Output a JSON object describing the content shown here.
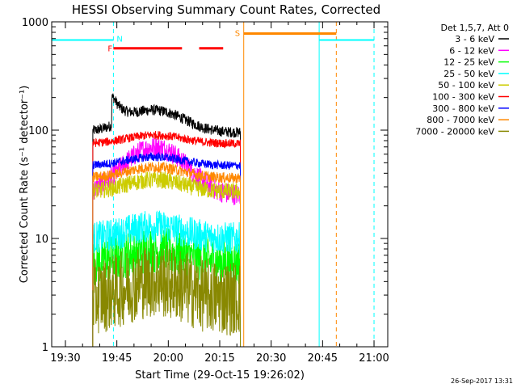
{
  "chart_data": {
    "type": "line",
    "title": "HESSI Observing Summary Count Rates, Corrected",
    "xlabel": "Start Time (29-Oct-15 19:26:02)",
    "ylabel": "Corrected Count Rate (s⁻¹ detector⁻¹)",
    "y_scale": "log",
    "ylim": [
      1,
      1000
    ],
    "xlim": [
      "19:26",
      "21:04"
    ],
    "x_ticks": [
      "19:30",
      "19:45",
      "20:00",
      "20:15",
      "20:30",
      "20:45",
      "21:00"
    ],
    "y_ticks": [
      "1",
      "10",
      "100",
      "1000"
    ],
    "legend_title": "Det 1,5,7, Att 0",
    "legend_placement": "right",
    "data_start": "19:38",
    "data_end": "20:21",
    "series": [
      {
        "name": "3 - 6 keV",
        "color": "#000000",
        "base": 95,
        "peak": 190,
        "noise": 0.05
      },
      {
        "name": "6 - 12 keV",
        "color": "#ff00ff",
        "base": 25,
        "peak": 100,
        "noise": 0.1
      },
      {
        "name": "12 - 25 keV",
        "color": "#00ff00",
        "base": 6,
        "peak": 9,
        "noise": 0.22
      },
      {
        "name": "25 - 50 keV",
        "color": "#00ffff",
        "base": 10,
        "peak": 15,
        "noise": 0.15
      },
      {
        "name": "50 - 100 keV",
        "color": "#cccc00",
        "base": 27,
        "peak": 40,
        "noise": 0.08
      },
      {
        "name": "100 - 300 keV",
        "color": "#ff0000",
        "base": 75,
        "peak": 100,
        "noise": 0.04
      },
      {
        "name": "300 - 800 keV",
        "color": "#0000ff",
        "base": 47,
        "peak": 63,
        "noise": 0.04
      },
      {
        "name": "800 - 7000 keV",
        "color": "#ff8800",
        "base": 36,
        "peak": 52,
        "noise": 0.05
      },
      {
        "name": "7000 - 20000 keV",
        "color": "#888800",
        "base": 2.8,
        "peak": 5,
        "noise": 0.35
      }
    ],
    "flags": {
      "night": {
        "label": "N",
        "color": "#00ffff",
        "intervals": [
          [
            "19:26",
            "19:44"
          ],
          [
            "20:44",
            "21:00"
          ]
        ],
        "level": 680
      },
      "flare": {
        "label": "F",
        "color": "#ff0000",
        "intervals": [
          [
            "19:44",
            "20:04"
          ],
          [
            "20:09",
            "20:16"
          ]
        ],
        "level": 570
      },
      "saa": {
        "label": "S",
        "color": "#ff8800",
        "intervals": [
          [
            "20:22",
            "20:49"
          ]
        ],
        "level": 780
      }
    },
    "vlines": [
      {
        "time": "19:44",
        "color": "#00ffff",
        "dash": true
      },
      {
        "time": "20:22",
        "color": "#ff8800",
        "dash": false
      },
      {
        "time": "20:44",
        "color": "#00ffff",
        "dash": false
      },
      {
        "time": "20:49",
        "color": "#ff8800",
        "dash": true
      },
      {
        "time": "21:00",
        "color": "#00ffff",
        "dash": true
      }
    ],
    "footer": "26-Sep-2017 13:31"
  }
}
